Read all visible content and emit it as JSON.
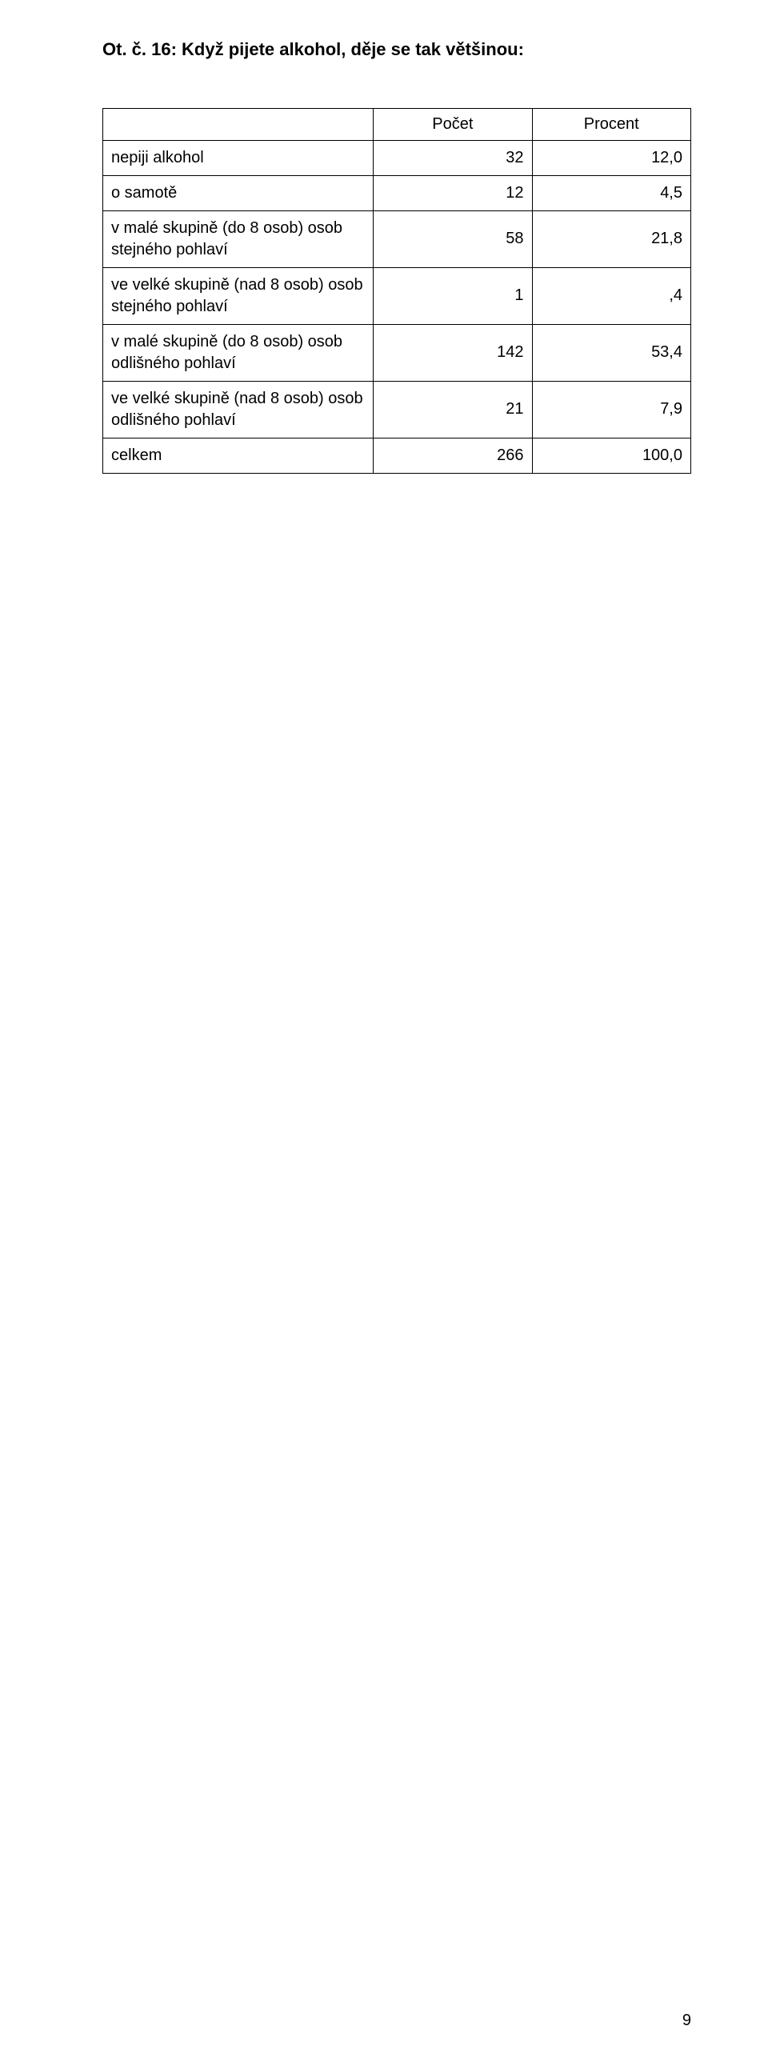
{
  "heading": "Ot. č. 16: Když pijete alkohol, děje se tak většinou:",
  "table": {
    "columns": [
      "",
      "Počet",
      "Procent"
    ],
    "rows": [
      {
        "label": "nepiji alkohol",
        "count": "32",
        "percent": "12,0"
      },
      {
        "label": "o samotě",
        "count": "12",
        "percent": "4,5"
      },
      {
        "label": "v malé skupině (do 8 osob) osob stejného pohlaví",
        "count": "58",
        "percent": "21,8"
      },
      {
        "label": "ve velké skupině (nad 8 osob) osob stejného pohlaví",
        "count": "1",
        "percent": ",4"
      },
      {
        "label": "v malé skupině (do 8 osob) osob odlišného pohlaví",
        "count": "142",
        "percent": "53,4"
      },
      {
        "label": "ve velké skupině (nad 8 osob) osob odlišného pohlaví",
        "count": "21",
        "percent": "7,9"
      },
      {
        "label": "celkem",
        "count": "266",
        "percent": "100,0"
      }
    ],
    "column_widths_pct": [
      46,
      27,
      27
    ],
    "border_color": "#000000",
    "font_size_pt": 15,
    "num_align": "right"
  },
  "page_number": "9",
  "colors": {
    "background": "#ffffff",
    "text": "#000000"
  }
}
